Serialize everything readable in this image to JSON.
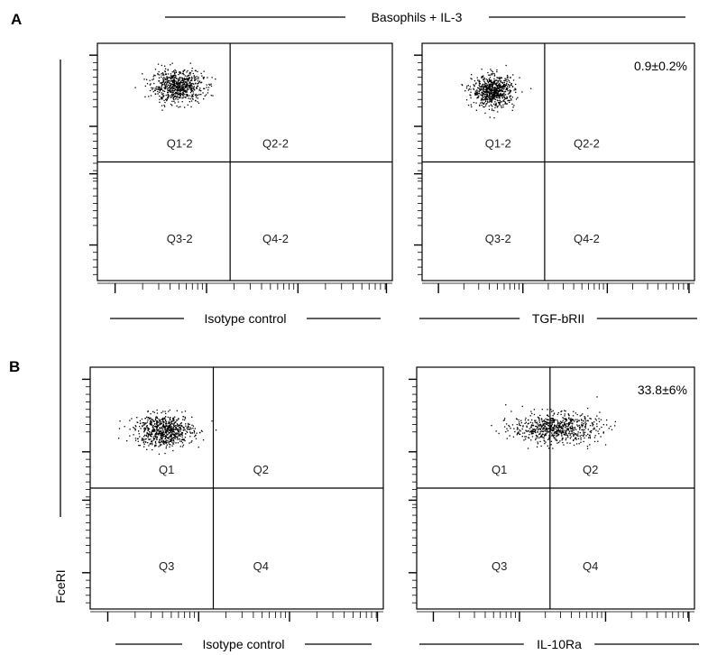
{
  "figure": {
    "panel_a_letter": "A",
    "panel_b_letter": "B",
    "top_label": "Basophils  + IL-3",
    "y_axis_label": "FceRI"
  },
  "chart_data": [
    {
      "type": "scatter",
      "panel": "A",
      "xlabel": "Isotype control",
      "ylabel": "FceRI",
      "quadrants": [
        "Q1-2",
        "Q2-2",
        "Q3-2",
        "Q4-2"
      ],
      "annotation": "",
      "x_scale": "log",
      "y_scale": "log",
      "population": {
        "x_center": 0.27,
        "y_center": 0.82,
        "x_spread": 0.08,
        "y_spread": 0.06,
        "n_points": 700
      },
      "gate": {
        "x": 0.45,
        "y": 0.5
      }
    },
    {
      "type": "scatter",
      "panel": "A",
      "xlabel": "TGF-bRII",
      "ylabel": "FceRI",
      "quadrants": [
        "Q1-2",
        "Q2-2",
        "Q3-2",
        "Q4-2"
      ],
      "annotation": "0.9±0.2%",
      "x_scale": "log",
      "y_scale": "log",
      "population": {
        "x_center": 0.26,
        "y_center": 0.8,
        "x_spread": 0.07,
        "y_spread": 0.06,
        "n_points": 700
      },
      "gate": {
        "x": 0.45,
        "y": 0.5
      }
    },
    {
      "type": "scatter",
      "panel": "B",
      "xlabel": "Isotype control",
      "ylabel": "FceRI",
      "quadrants": [
        "Q1",
        "Q2",
        "Q3",
        "Q4"
      ],
      "annotation": "",
      "x_scale": "log",
      "y_scale": "log",
      "population": {
        "x_center": 0.25,
        "y_center": 0.74,
        "x_spread": 0.09,
        "y_spread": 0.06,
        "n_points": 700
      },
      "gate": {
        "x": 0.42,
        "y": 0.5
      }
    },
    {
      "type": "scatter",
      "panel": "B",
      "xlabel": "IL-10Ra",
      "ylabel": "FceRI",
      "quadrants": [
        "Q1",
        "Q2",
        "Q3",
        "Q4"
      ],
      "annotation": "33.8±6%",
      "x_scale": "log",
      "y_scale": "log",
      "population": {
        "x_center": 0.5,
        "y_center": 0.75,
        "x_spread": 0.14,
        "y_spread": 0.055,
        "n_points": 700
      },
      "gate": {
        "x": 0.48,
        "y": 0.5
      }
    }
  ]
}
